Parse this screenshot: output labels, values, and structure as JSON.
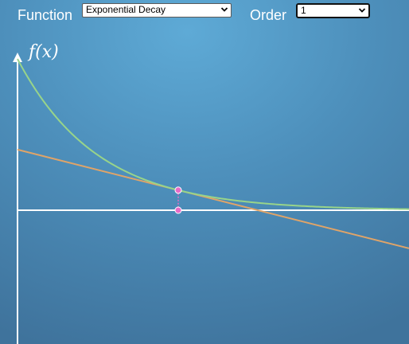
{
  "controls": {
    "function_label": "Function",
    "function_value": "Exponential Decay",
    "order_label": "Order",
    "order_value": "1"
  },
  "plot": {
    "y_axis_label": "f(x)",
    "colors": {
      "function_curve": "#98d48a",
      "tangent_line": "#e0a468",
      "point": "#e86ac8",
      "axes": "#ffffff"
    }
  }
}
